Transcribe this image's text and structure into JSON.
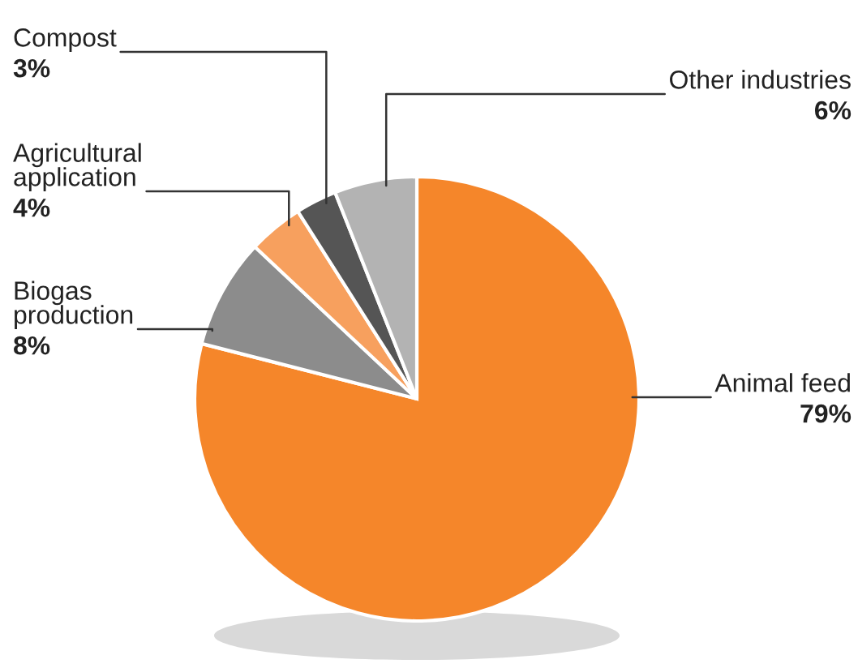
{
  "chart_data": {
    "type": "pie",
    "categories": [
      "Animal feed",
      "Biogas\nproduction",
      "Agricultural\napplication",
      "Compost",
      "Other industries"
    ],
    "values": [
      79,
      8,
      4,
      3,
      6
    ],
    "colors": [
      "#f5862a",
      "#8c8c8c",
      "#f7a05e",
      "#555555",
      "#b3b3b3"
    ],
    "value_labels": [
      "79%",
      "8%",
      "4%",
      "3%",
      "6%"
    ]
  }
}
